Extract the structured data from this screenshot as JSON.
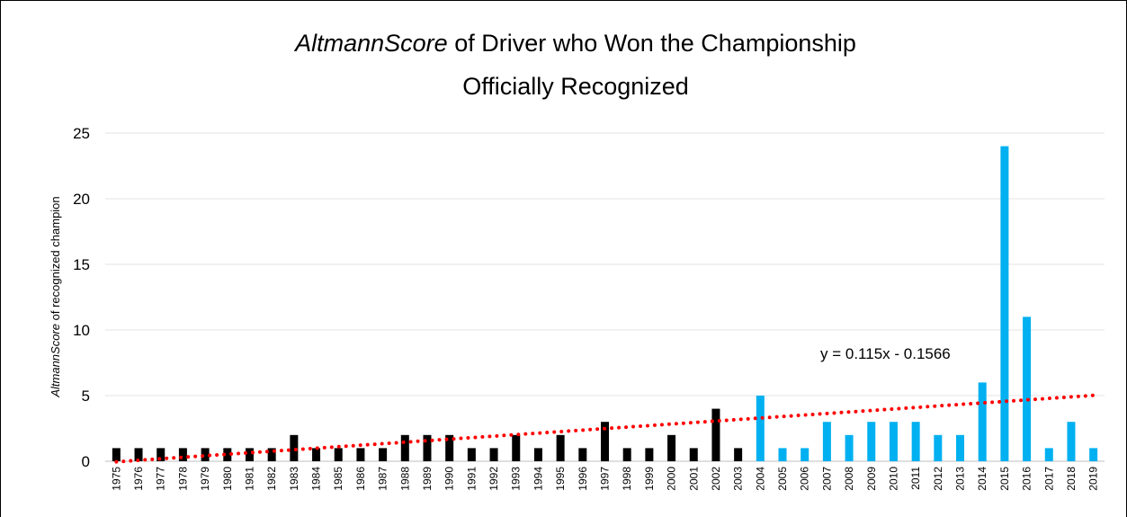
{
  "chart_data": {
    "type": "bar",
    "title": [
      "AltmannScore",
      " of Driver who Won the Championship",
      "Officially Recognized"
    ],
    "ylabel": [
      "AltmannScore",
      " of recognized champion"
    ],
    "categories": [
      "1975",
      "1976",
      "1977",
      "1978",
      "1979",
      "1980",
      "1981",
      "1982",
      "1983",
      "1984",
      "1985",
      "1986",
      "1987",
      "1988",
      "1989",
      "1990",
      "1991",
      "1992",
      "1993",
      "1994",
      "1995",
      "1996",
      "1997",
      "1998",
      "1999",
      "2000",
      "2001",
      "2002",
      "2003",
      "2004",
      "2005",
      "2006",
      "2007",
      "2008",
      "2009",
      "2010",
      "2011",
      "2012",
      "2013",
      "2014",
      "2015",
      "2016",
      "2017",
      "2018",
      "2019"
    ],
    "values": [
      1,
      1,
      1,
      1,
      1,
      1,
      1,
      1,
      2,
      1,
      1,
      1,
      1,
      2,
      2,
      2,
      1,
      1,
      2,
      1,
      2,
      1,
      3,
      1,
      1,
      2,
      1,
      4,
      1,
      5,
      1,
      1,
      3,
      2,
      3,
      3,
      3,
      2,
      2,
      6,
      24,
      11,
      1,
      3,
      1
    ],
    "colors": [
      "#000000",
      "#000000",
      "#000000",
      "#000000",
      "#000000",
      "#000000",
      "#000000",
      "#000000",
      "#000000",
      "#000000",
      "#000000",
      "#000000",
      "#000000",
      "#000000",
      "#000000",
      "#000000",
      "#000000",
      "#000000",
      "#000000",
      "#000000",
      "#000000",
      "#000000",
      "#000000",
      "#000000",
      "#000000",
      "#000000",
      "#000000",
      "#000000",
      "#000000",
      "#00b0f0",
      "#00b0f0",
      "#00b0f0",
      "#00b0f0",
      "#00b0f0",
      "#00b0f0",
      "#00b0f0",
      "#00b0f0",
      "#00b0f0",
      "#00b0f0",
      "#00b0f0",
      "#00b0f0",
      "#00b0f0",
      "#00b0f0",
      "#00b0f0",
      "#00b0f0"
    ],
    "ylim": [
      0,
      25
    ],
    "yticks": [
      0,
      5,
      10,
      15,
      20,
      25
    ],
    "grid": true,
    "trendline": {
      "slope": 0.115,
      "intercept": -0.1566,
      "label": "y = 0.115x - 0.1566",
      "color": "#ff0000"
    }
  }
}
